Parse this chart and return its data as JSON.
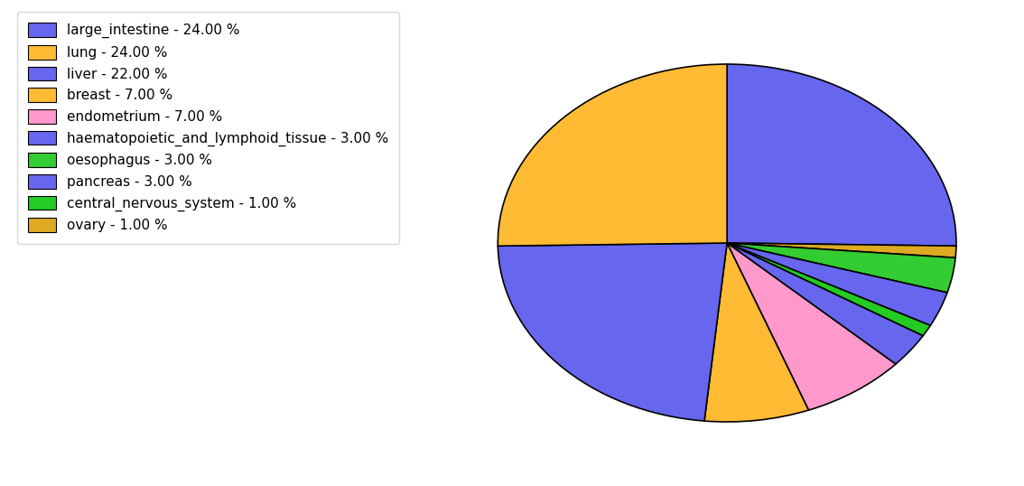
{
  "labels": [
    "large_intestine - 24.00 %",
    "lung - 24.00 %",
    "liver - 22.00 %",
    "breast - 7.00 %",
    "endometrium - 7.00 %",
    "haematopoietic_and_lymphoid_tissue - 3.00 %",
    "oesophagus - 3.00 %",
    "pancreas - 3.00 %",
    "central_nervous_system - 1.00 %",
    "ovary - 1.00 %"
  ],
  "values": [
    24,
    24,
    22,
    7,
    7,
    3,
    3,
    3,
    1,
    1
  ],
  "colors": [
    "#6666ee",
    "#ffbb33",
    "#6666ee",
    "#ffbb33",
    "#ff99cc",
    "#6666ee",
    "#33cc33",
    "#6666ee",
    "#22cc22",
    "#ddaa22"
  ],
  "pie_order_indices": [
    0,
    9,
    6,
    5,
    8,
    7,
    4,
    3,
    2,
    1
  ],
  "startangle": 90,
  "figsize": [
    11.34,
    5.38
  ],
  "dpi": 100
}
